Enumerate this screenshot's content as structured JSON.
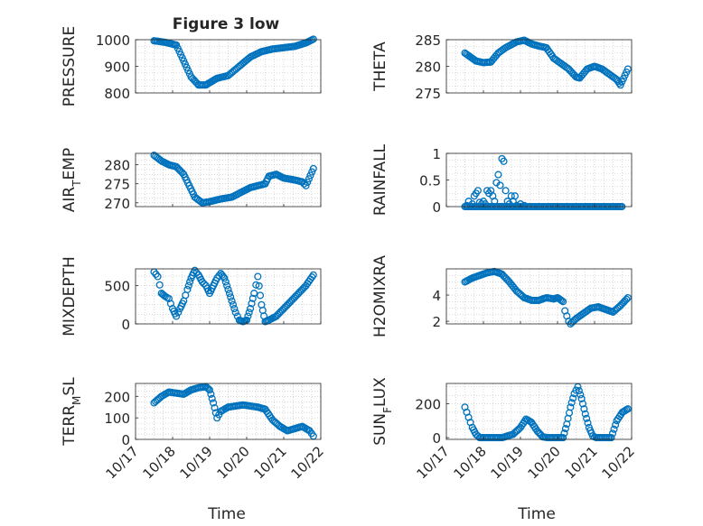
{
  "figure_title": "Figure 3 low",
  "xlabel": "Time",
  "x_tick_labels": [
    "10/17",
    "10/18",
    "10/19",
    "10/20",
    "10/21",
    "10/22"
  ],
  "colors": {
    "marker": "#0072BD",
    "axis": "#262626",
    "grid": "#bfbfbf"
  },
  "chart_data": [
    {
      "type": "scatter",
      "title": "Figure 3 low",
      "ylabel": "PRESSURE",
      "ylabel_sub": "",
      "xlim": [
        0,
        5
      ],
      "ylim": [
        800,
        1000
      ],
      "yticks": [
        800,
        900,
        1000
      ],
      "ytick_labels": [
        "800",
        "900",
        "1000"
      ],
      "x_tick_labels": [],
      "keys": [
        [
          0.5,
          996
        ],
        [
          0.8,
          990
        ],
        [
          1.1,
          980
        ],
        [
          1.3,
          920
        ],
        [
          1.5,
          860
        ],
        [
          1.7,
          830
        ],
        [
          1.9,
          830
        ],
        [
          2.2,
          855
        ],
        [
          2.5,
          865
        ],
        [
          2.8,
          900
        ],
        [
          3.1,
          935
        ],
        [
          3.4,
          955
        ],
        [
          3.7,
          965
        ],
        [
          4.0,
          970
        ],
        [
          4.3,
          975
        ],
        [
          4.6,
          988
        ],
        [
          4.8,
          1002
        ]
      ]
    },
    {
      "type": "scatter",
      "title": "",
      "ylabel": "THETA",
      "ylabel_sub": "",
      "xlim": [
        0,
        5
      ],
      "ylim": [
        275,
        285
      ],
      "yticks": [
        275,
        280,
        285
      ],
      "ytick_labels": [
        "275",
        "280",
        "285"
      ],
      "x_tick_labels": [],
      "keys": [
        [
          0.5,
          282.5
        ],
        [
          0.8,
          281
        ],
        [
          1.0,
          280.7
        ],
        [
          1.2,
          280.8
        ],
        [
          1.4,
          282.5
        ],
        [
          1.6,
          283.5
        ],
        [
          1.9,
          284.6
        ],
        [
          2.1,
          284.9
        ],
        [
          2.3,
          284.2
        ],
        [
          2.5,
          283.8
        ],
        [
          2.7,
          283.5
        ],
        [
          2.9,
          281.5
        ],
        [
          3.1,
          280.5
        ],
        [
          3.3,
          279.5
        ],
        [
          3.5,
          278
        ],
        [
          3.6,
          277.8
        ],
        [
          3.8,
          279.5
        ],
        [
          4.0,
          280
        ],
        [
          4.2,
          279.5
        ],
        [
          4.4,
          278.5
        ],
        [
          4.6,
          277.5
        ],
        [
          4.7,
          276.5
        ],
        [
          4.9,
          279.5
        ]
      ]
    },
    {
      "type": "scatter",
      "title": "",
      "ylabel": "AIR",
      "ylabel_sub": "T",
      "ylabel_tail": "EMP",
      "xlim": [
        0,
        5
      ],
      "ylim": [
        269,
        283
      ],
      "yticks": [
        270,
        275,
        280
      ],
      "ytick_labels": [
        "270",
        "275",
        "280"
      ],
      "x_tick_labels": [],
      "keys": [
        [
          0.5,
          282.5
        ],
        [
          0.7,
          281
        ],
        [
          0.9,
          280
        ],
        [
          1.1,
          279.5
        ],
        [
          1.3,
          277.5
        ],
        [
          1.45,
          274.5
        ],
        [
          1.6,
          271.5
        ],
        [
          1.8,
          270
        ],
        [
          2.0,
          270.3
        ],
        [
          2.3,
          271
        ],
        [
          2.6,
          271.5
        ],
        [
          2.9,
          273
        ],
        [
          3.1,
          274
        ],
        [
          3.3,
          274.5
        ],
        [
          3.5,
          275
        ],
        [
          3.6,
          277
        ],
        [
          3.8,
          277.5
        ],
        [
          4.0,
          276.5
        ],
        [
          4.3,
          276
        ],
        [
          4.5,
          275.5
        ],
        [
          4.6,
          274.5
        ],
        [
          4.8,
          279
        ]
      ]
    },
    {
      "type": "scatter",
      "title": "",
      "ylabel": "RAINFALL",
      "ylabel_sub": "",
      "xlim": [
        0,
        5
      ],
      "ylim": [
        0,
        1
      ],
      "yticks": [
        0,
        0.5,
        1
      ],
      "ytick_labels": [
        "0",
        "0.5",
        "1"
      ],
      "x_tick_labels": [],
      "points": [
        [
          0.55,
          0.02
        ],
        [
          0.6,
          0.1
        ],
        [
          0.7,
          0.05
        ],
        [
          0.75,
          0.2
        ],
        [
          0.8,
          0.25
        ],
        [
          0.85,
          0.3
        ],
        [
          0.9,
          0.08
        ],
        [
          0.95,
          0.05
        ],
        [
          1.0,
          0.1
        ],
        [
          1.05,
          0.05
        ],
        [
          1.1,
          0.3
        ],
        [
          1.15,
          0.25
        ],
        [
          1.2,
          0.3
        ],
        [
          1.25,
          0.2
        ],
        [
          1.3,
          0.1
        ],
        [
          1.35,
          0.45
        ],
        [
          1.4,
          0.6
        ],
        [
          1.45,
          0.4
        ],
        [
          1.5,
          0.9
        ],
        [
          1.55,
          0.85
        ],
        [
          1.6,
          0.3
        ],
        [
          1.65,
          0.1
        ],
        [
          1.7,
          0.05
        ],
        [
          1.75,
          0.2
        ],
        [
          1.8,
          0.1
        ],
        [
          1.85,
          0.2
        ],
        [
          1.9,
          0.02
        ],
        [
          2.0,
          0.05
        ],
        [
          2.1,
          0.02
        ]
      ],
      "baseline": [
        0.5,
        4.75,
        0
      ]
    },
    {
      "type": "scatter",
      "title": "",
      "ylabel": "MIXDEPTH",
      "ylabel_sub": "",
      "xlim": [
        0,
        5
      ],
      "ylim": [
        0,
        720
      ],
      "yticks": [
        0,
        500
      ],
      "ytick_labels": [
        "0",
        "500"
      ],
      "x_tick_labels": [],
      "keys": [
        [
          0.5,
          680
        ],
        [
          0.6,
          620
        ],
        [
          0.7,
          400
        ],
        [
          0.8,
          360
        ],
        [
          0.9,
          330
        ],
        [
          1.0,
          200
        ],
        [
          1.1,
          100
        ],
        [
          1.2,
          200
        ],
        [
          1.3,
          300
        ],
        [
          1.4,
          450
        ],
        [
          1.5,
          600
        ],
        [
          1.6,
          700
        ],
        [
          1.7,
          640
        ],
        [
          1.8,
          550
        ],
        [
          1.9,
          500
        ],
        [
          2.0,
          400
        ],
        [
          2.1,
          500
        ],
        [
          2.2,
          600
        ],
        [
          2.3,
          660
        ],
        [
          2.4,
          600
        ],
        [
          2.5,
          450
        ],
        [
          2.6,
          300
        ],
        [
          2.7,
          150
        ],
        [
          2.8,
          50
        ],
        [
          2.9,
          30
        ],
        [
          3.0,
          50
        ],
        [
          3.1,
          200
        ],
        [
          3.2,
          400
        ],
        [
          3.3,
          620
        ],
        [
          3.4,
          250
        ],
        [
          3.5,
          30
        ],
        [
          3.6,
          50
        ],
        [
          3.8,
          100
        ],
        [
          4.0,
          200
        ],
        [
          4.2,
          300
        ],
        [
          4.4,
          400
        ],
        [
          4.6,
          500
        ],
        [
          4.8,
          640
        ]
      ]
    },
    {
      "type": "scatter",
      "title": "",
      "ylabel": "H2OMIXRA",
      "ylabel_sub": "",
      "xlim": [
        0,
        5
      ],
      "ylim": [
        1.8,
        6
      ],
      "yticks": [
        2,
        4
      ],
      "ytick_labels": [
        "2",
        "4"
      ],
      "x_tick_labels": [],
      "keys": [
        [
          0.5,
          5.0
        ],
        [
          0.7,
          5.3
        ],
        [
          0.9,
          5.5
        ],
        [
          1.1,
          5.7
        ],
        [
          1.3,
          5.8
        ],
        [
          1.5,
          5.6
        ],
        [
          1.7,
          5.0
        ],
        [
          1.9,
          4.3
        ],
        [
          2.1,
          3.8
        ],
        [
          2.3,
          3.6
        ],
        [
          2.5,
          3.6
        ],
        [
          2.7,
          3.8
        ],
        [
          2.9,
          3.7
        ],
        [
          3.0,
          3.8
        ],
        [
          3.15,
          3.5
        ],
        [
          3.2,
          2.8
        ],
        [
          3.3,
          2.0
        ],
        [
          3.35,
          1.8
        ],
        [
          3.5,
          2.2
        ],
        [
          3.7,
          2.6
        ],
        [
          3.9,
          3.0
        ],
        [
          4.1,
          3.1
        ],
        [
          4.3,
          2.9
        ],
        [
          4.5,
          2.7
        ],
        [
          4.7,
          3.2
        ],
        [
          4.9,
          3.8
        ]
      ]
    },
    {
      "type": "scatter",
      "title": "",
      "ylabel": "TERR",
      "ylabel_sub": "M",
      "ylabel_tail": "SL",
      "xlim": [
        0,
        5
      ],
      "ylim": [
        0,
        260
      ],
      "yticks": [
        0,
        100,
        200
      ],
      "ytick_labels": [
        "0",
        "100",
        "200"
      ],
      "x_tick_labels": [
        "10/17",
        "10/18",
        "10/19",
        "10/20",
        "10/21",
        "10/22"
      ],
      "keys": [
        [
          0.5,
          170
        ],
        [
          0.7,
          200
        ],
        [
          0.9,
          220
        ],
        [
          1.1,
          215
        ],
        [
          1.3,
          210
        ],
        [
          1.5,
          230
        ],
        [
          1.7,
          240
        ],
        [
          1.9,
          245
        ],
        [
          2.0,
          230
        ],
        [
          2.1,
          170
        ],
        [
          2.2,
          100
        ],
        [
          2.3,
          130
        ],
        [
          2.5,
          150
        ],
        [
          2.7,
          155
        ],
        [
          2.9,
          160
        ],
        [
          3.1,
          155
        ],
        [
          3.3,
          150
        ],
        [
          3.5,
          140
        ],
        [
          3.7,
          90
        ],
        [
          3.9,
          60
        ],
        [
          4.1,
          40
        ],
        [
          4.3,
          50
        ],
        [
          4.5,
          60
        ],
        [
          4.7,
          40
        ],
        [
          4.8,
          15
        ]
      ]
    },
    {
      "type": "scatter",
      "title": "",
      "ylabel": "SUN",
      "ylabel_sub": "F",
      "ylabel_tail": "LUX",
      "xlim": [
        0,
        5
      ],
      "ylim": [
        -10,
        320
      ],
      "yticks": [
        0,
        200
      ],
      "ytick_labels": [
        "0",
        "200"
      ],
      "x_tick_labels": [
        "10/17",
        "10/18",
        "10/19",
        "10/20",
        "10/21",
        "10/22"
      ],
      "keys": [
        [
          0.5,
          180
        ],
        [
          0.6,
          120
        ],
        [
          0.7,
          60
        ],
        [
          0.8,
          20
        ],
        [
          0.9,
          0
        ],
        [
          1.5,
          0
        ],
        [
          1.8,
          20
        ],
        [
          2.0,
          60
        ],
        [
          2.15,
          110
        ],
        [
          2.3,
          90
        ],
        [
          2.45,
          40
        ],
        [
          2.6,
          5
        ],
        [
          2.75,
          0
        ],
        [
          3.15,
          0
        ],
        [
          3.25,
          80
        ],
        [
          3.35,
          180
        ],
        [
          3.45,
          260
        ],
        [
          3.55,
          300
        ],
        [
          3.65,
          230
        ],
        [
          3.75,
          140
        ],
        [
          3.85,
          60
        ],
        [
          3.95,
          10
        ],
        [
          4.05,
          0
        ],
        [
          4.45,
          0
        ],
        [
          4.6,
          100
        ],
        [
          4.75,
          150
        ],
        [
          4.9,
          170
        ]
      ]
    }
  ]
}
